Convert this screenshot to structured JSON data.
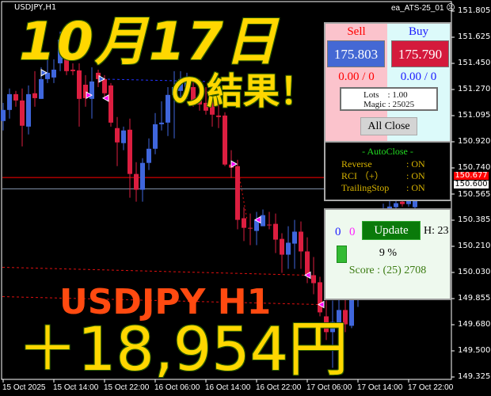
{
  "chart": {
    "symbol_label": "USDJPY,H1",
    "ea_label": "ea_ATS-25_01",
    "ea_status_icon": "frown-face-icon",
    "colors": {
      "bull": "#3f66dc",
      "bear": "#dc1e40",
      "background": "#000000",
      "bid_line": "#ff0000",
      "ask_line": "#8090a8"
    },
    "price_axis": [
      "151.805",
      "151.625",
      "151.450",
      "151.270",
      "151.095",
      "150.920",
      "150.740",
      "150.565",
      "150.385",
      "150.210",
      "150.030",
      "149.855",
      "149.680",
      "149.500",
      "149.325"
    ],
    "price_range": [
      149.325,
      151.805
    ],
    "time_axis": [
      "15 Oct 2025",
      "15 Oct 14:00",
      "15 Oct 22:00",
      "16 Oct 06:00",
      "16 Oct 14:00",
      "16 Oct 22:00",
      "17 Oct 06:00",
      "17 Oct 14:00",
      "17 Oct 22:00"
    ],
    "bid_tag": "150.677",
    "ask_tag": "150.600",
    "candles_ohlc": [
      [
        151.06,
        151.183,
        150.996,
        151.135
      ],
      [
        151.135,
        151.28,
        151.076,
        151.242
      ],
      [
        151.242,
        151.264,
        151.157,
        151.199
      ],
      [
        151.199,
        151.28,
        150.888,
        151.028
      ],
      [
        151.022,
        151.301,
        150.969,
        151.242
      ],
      [
        151.248,
        151.398,
        151.157,
        151.215
      ],
      [
        151.21,
        151.424,
        151.21,
        151.344
      ],
      [
        151.344,
        151.478,
        151.317,
        151.387
      ],
      [
        151.355,
        151.478,
        151.317,
        151.408
      ],
      [
        151.451,
        151.666,
        151.398,
        151.612
      ],
      [
        151.639,
        151.719,
        151.371,
        151.398
      ],
      [
        151.408,
        151.451,
        151.371,
        151.398
      ],
      [
        151.403,
        151.451,
        151.022,
        151.21
      ],
      [
        151.306,
        151.371,
        151.157,
        151.215
      ],
      [
        151.21,
        151.424,
        151.076,
        151.328
      ],
      [
        151.387,
        151.408,
        151.29,
        151.344
      ],
      [
        151.344,
        151.371,
        151.21,
        151.248
      ],
      [
        151.301,
        151.317,
        151.022,
        151.049
      ],
      [
        151.012,
        151.087,
        150.754,
        150.915
      ],
      [
        150.91,
        151.022,
        150.862,
        150.996
      ],
      [
        151.001,
        151.076,
        150.54,
        150.701
      ],
      [
        150.701,
        150.781,
        150.513,
        150.594
      ],
      [
        150.594,
        150.808,
        150.513,
        150.776
      ],
      [
        150.776,
        150.942,
        150.728,
        150.872
      ],
      [
        150.872,
        151.114,
        150.835,
        151.038
      ],
      [
        151.038,
        151.194,
        150.996,
        151.049
      ],
      [
        151.049,
        151.29,
        150.958,
        151.237
      ],
      [
        151.237,
        151.398,
        150.942,
        151.29
      ],
      [
        151.264,
        151.398,
        151.183,
        151.344
      ],
      [
        151.29,
        151.387,
        151.21,
        151.355
      ],
      [
        151.29,
        151.344,
        151.157,
        151.183
      ],
      [
        151.21,
        151.344,
        151.13,
        151.172
      ],
      [
        151.183,
        151.29,
        151.103,
        151.13
      ],
      [
        151.194,
        151.29,
        151.022,
        151.103
      ],
      [
        151.097,
        151.183,
        151.012,
        151.087
      ],
      [
        151.097,
        151.119,
        150.754,
        150.765
      ],
      [
        150.765,
        150.862,
        150.674,
        150.744
      ],
      [
        150.754,
        150.797,
        150.326,
        150.39
      ],
      [
        150.401,
        150.476,
        150.246,
        150.336
      ],
      [
        150.336,
        150.433,
        150.219,
        150.331
      ],
      [
        150.315,
        150.444,
        150.219,
        150.39
      ],
      [
        150.347,
        150.46,
        150.347,
        150.422
      ],
      [
        150.358,
        150.444,
        150.326,
        150.353
      ],
      [
        150.363,
        150.433,
        150.165,
        150.256
      ],
      [
        150.261,
        150.299,
        150.031,
        150.154
      ],
      [
        150.154,
        150.347,
        150.058,
        150.235
      ],
      [
        150.229,
        150.39,
        150.058,
        150.31
      ],
      [
        150.31,
        150.379,
        150.058,
        150.176
      ],
      [
        150.176,
        150.272,
        149.961,
        150.015
      ],
      [
        150.015,
        150.138,
        149.886,
        149.961
      ],
      [
        149.967,
        150.004,
        149.736,
        149.763
      ],
      [
        149.736,
        149.843,
        149.575,
        149.629
      ],
      [
        149.629,
        149.843,
        149.387,
        149.698
      ],
      [
        149.682,
        149.854,
        149.656,
        149.779
      ],
      [
        149.779,
        149.854,
        149.629,
        149.682
      ],
      [
        149.672,
        149.897,
        149.656,
        149.854
      ],
      [
        149.854,
        150.05,
        149.8,
        150.0
      ],
      [
        150.0,
        150.2,
        149.95,
        150.15
      ],
      [
        150.15,
        150.35,
        150.1,
        150.3
      ],
      [
        150.3,
        150.45,
        150.25,
        150.4
      ],
      [
        150.4,
        150.5,
        150.35,
        150.45
      ],
      [
        150.45,
        150.52,
        150.4,
        150.48
      ],
      [
        150.476,
        150.54,
        150.46,
        150.503
      ],
      [
        150.513,
        150.54,
        150.48,
        150.497
      ],
      [
        150.497,
        150.573,
        150.48,
        150.53
      ],
      [
        150.476,
        150.594,
        150.46,
        150.54
      ]
    ],
    "levels": {
      "blue_dashed": 151.344,
      "red_dotted_1": 150.015,
      "red_dotted_2": 149.816
    }
  },
  "overlay": {
    "date_title": "10月17日",
    "result_label": "の結果！",
    "pair_label": "USDJPY  H1",
    "profit": "＋18,954円"
  },
  "trade_panel": {
    "sell_label": "Sell",
    "buy_label": "Buy",
    "sell_price": "175.803",
    "buy_price": "175.790",
    "sell_pl": "0.00 / 0",
    "buy_pl": "0.00 / 0",
    "lots": "Lots    : 1.00",
    "magic": "Magic : 25025",
    "all_close": "All Close"
  },
  "autoclose_panel": {
    "title": "- AutoClose -",
    "rows": [
      {
        "label": "Reverse",
        "value": ": ON"
      },
      {
        "label": "RCI （+）",
        "value": ": ON"
      },
      {
        "label": "TrailingStop",
        "value": ": ON"
      }
    ]
  },
  "status_panel": {
    "count_blue": "0",
    "count_magenta": "0",
    "update_label": "Update",
    "hour": "H: 23",
    "progress_percent": 9,
    "progress_label": "9 %",
    "score": "Score : (25) 2708"
  }
}
